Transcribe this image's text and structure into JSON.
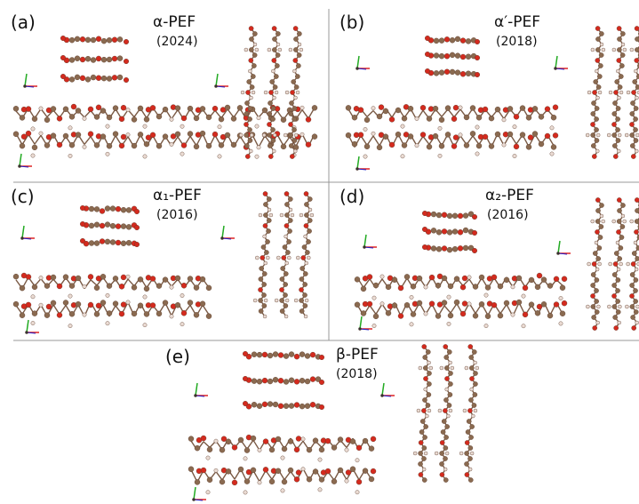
{
  "panels": [
    {
      "label": "(a)",
      "name": "α-PEF",
      "year": "(2024)"
    },
    {
      "label": "(b)",
      "name": "α′-PEF",
      "year": "(2018)"
    },
    {
      "label": "(c)",
      "name": "α₁-PEF",
      "year": "(2016)"
    },
    {
      "label": "(d)",
      "name": "α₂-PEF",
      "year": "(2016)"
    },
    {
      "label": "(e)",
      "name": "β-PEF",
      "year": "(2018)"
    }
  ]
}
